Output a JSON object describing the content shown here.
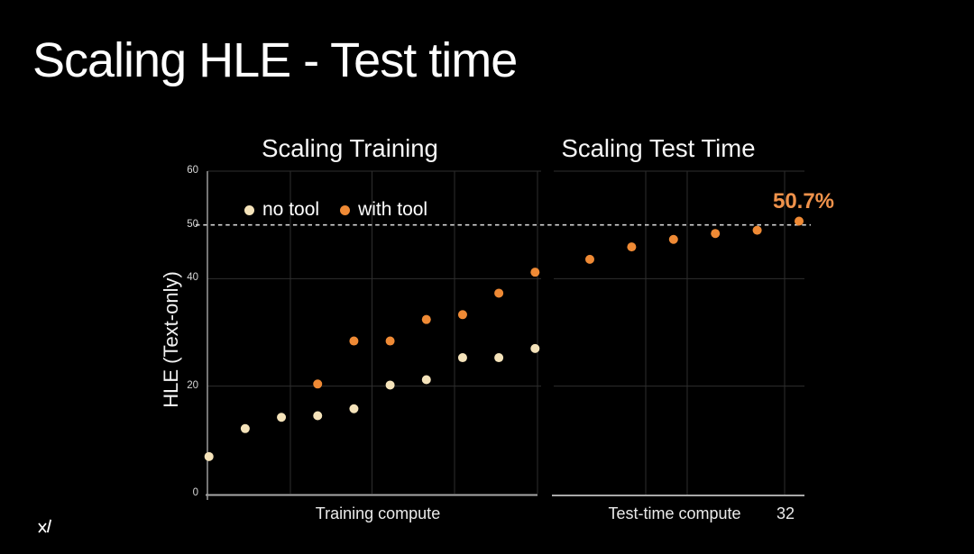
{
  "slide": {
    "title": "Scaling HLE - Test time",
    "logo_icon": "xai-logo"
  },
  "legend": {
    "items": [
      {
        "label": "no tool",
        "color": "#F5E3BA"
      },
      {
        "label": "with tool",
        "color": "#EF8A35"
      }
    ]
  },
  "colors": {
    "background": "#000000",
    "no_tool_dot": "#F5E3BA",
    "with_tool_dot": "#EF8A35",
    "annotation_orange": "#F0924B",
    "reference_line": "#D4D4D4",
    "gridline": "#2E2E2E"
  },
  "chart_data": [
    {
      "type": "scatter",
      "title": "Scaling Training",
      "xlabel": "Training compute",
      "ylabel": "HLE (Text-only)",
      "ylim": [
        0,
        60
      ],
      "yticks": [
        0,
        20,
        40,
        50,
        60
      ],
      "gridlines_y": [
        20,
        40,
        60
      ],
      "grid": true,
      "legend_position": "top-left-inside",
      "reference_line": {
        "y": 50,
        "style": "dashed",
        "color": "#D4D4D4"
      },
      "series": [
        {
          "name": "no tool",
          "color": "#F5E3BA",
          "x": [
            1,
            2,
            3,
            4,
            5,
            6,
            7,
            8,
            9,
            10
          ],
          "y": [
            6.9,
            12.1,
            14.2,
            14.5,
            15.8,
            20.2,
            21.2,
            25.3,
            25.3,
            27.0
          ]
        },
        {
          "name": "with tool",
          "color": "#EF8A35",
          "x": [
            4,
            5,
            6,
            7,
            8,
            9,
            10
          ],
          "y": [
            20.4,
            28.4,
            28.4,
            32.4,
            33.3,
            37.3,
            41.2
          ]
        }
      ]
    },
    {
      "type": "scatter",
      "title": "Scaling Test Time",
      "xlabel": "Test-time compute",
      "x_tick_labels": [
        "32"
      ],
      "ylim": [
        0,
        60
      ],
      "gridlines_y": [
        20,
        40,
        60
      ],
      "grid": true,
      "reference_line": {
        "y": 50,
        "style": "dashed",
        "color": "#D4D4D4"
      },
      "annotation": {
        "text": "50.7%",
        "color": "#F0924B"
      },
      "series": [
        {
          "name": "with tool",
          "color": "#EF8A35",
          "x": [
            1,
            2,
            3,
            4,
            5,
            6
          ],
          "y": [
            43.6,
            45.9,
            47.3,
            48.4,
            49.0,
            50.7
          ]
        }
      ]
    }
  ]
}
